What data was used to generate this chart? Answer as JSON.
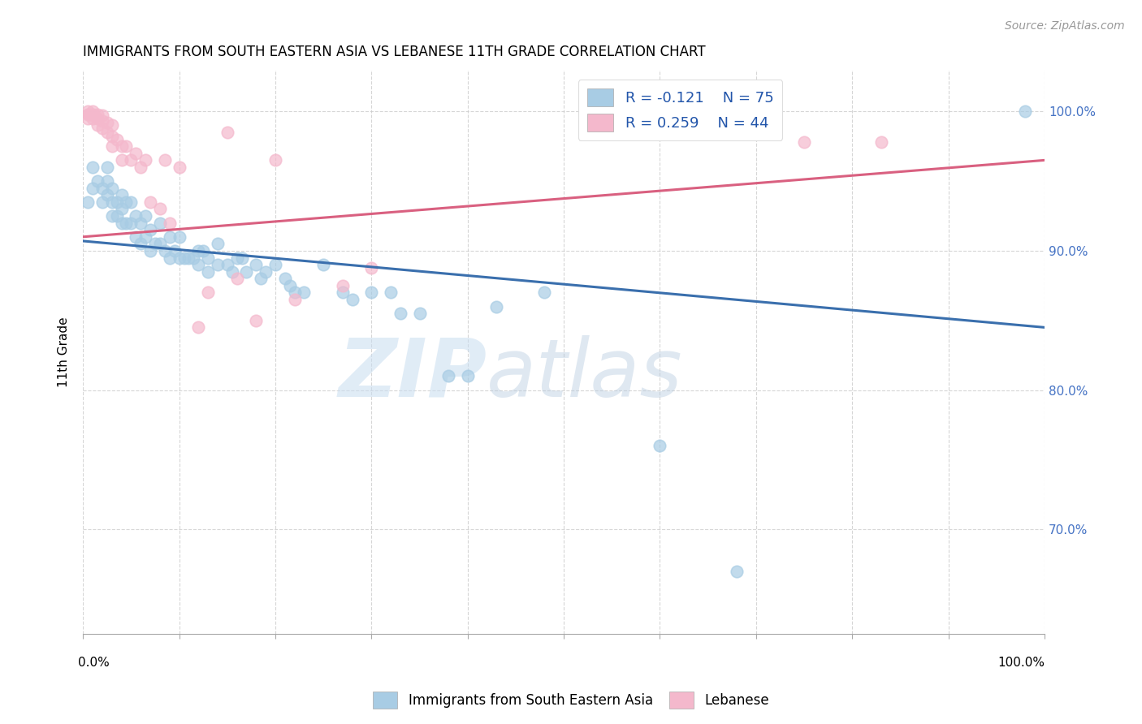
{
  "title": "IMMIGRANTS FROM SOUTH EASTERN ASIA VS LEBANESE 11TH GRADE CORRELATION CHART",
  "source": "Source: ZipAtlas.com",
  "ylabel": "11th Grade",
  "ytick_values": [
    0.7,
    0.8,
    0.9,
    1.0
  ],
  "xlim": [
    0.0,
    1.0
  ],
  "ylim": [
    0.625,
    1.03
  ],
  "legend_blue_R": "R = -0.121",
  "legend_blue_N": "N = 75",
  "legend_pink_R": "R = 0.259",
  "legend_pink_N": "N = 44",
  "blue_color": "#a8cce4",
  "pink_color": "#f4b8cc",
  "blue_line_color": "#3a6fad",
  "pink_line_color": "#d96080",
  "blue_line_start_y": 0.907,
  "blue_line_end_y": 0.845,
  "pink_line_start_y": 0.91,
  "pink_line_end_y": 0.965,
  "watermark_zip": "ZIP",
  "watermark_atlas": "atlas",
  "blue_scatter_x": [
    0.005,
    0.01,
    0.01,
    0.015,
    0.02,
    0.02,
    0.025,
    0.025,
    0.025,
    0.03,
    0.03,
    0.03,
    0.035,
    0.035,
    0.04,
    0.04,
    0.04,
    0.045,
    0.045,
    0.05,
    0.05,
    0.055,
    0.055,
    0.06,
    0.06,
    0.065,
    0.065,
    0.07,
    0.07,
    0.075,
    0.08,
    0.08,
    0.085,
    0.09,
    0.09,
    0.095,
    0.1,
    0.1,
    0.105,
    0.11,
    0.115,
    0.12,
    0.12,
    0.125,
    0.13,
    0.13,
    0.14,
    0.14,
    0.15,
    0.155,
    0.16,
    0.165,
    0.17,
    0.18,
    0.185,
    0.19,
    0.2,
    0.21,
    0.215,
    0.22,
    0.23,
    0.25,
    0.27,
    0.28,
    0.3,
    0.32,
    0.33,
    0.35,
    0.38,
    0.4,
    0.43,
    0.48,
    0.6,
    0.68,
    0.98
  ],
  "blue_scatter_y": [
    0.935,
    0.96,
    0.945,
    0.95,
    0.945,
    0.935,
    0.96,
    0.95,
    0.94,
    0.945,
    0.935,
    0.925,
    0.935,
    0.925,
    0.94,
    0.93,
    0.92,
    0.935,
    0.92,
    0.935,
    0.92,
    0.925,
    0.91,
    0.92,
    0.905,
    0.925,
    0.91,
    0.915,
    0.9,
    0.905,
    0.92,
    0.905,
    0.9,
    0.91,
    0.895,
    0.9,
    0.91,
    0.895,
    0.895,
    0.895,
    0.895,
    0.9,
    0.89,
    0.9,
    0.895,
    0.885,
    0.905,
    0.89,
    0.89,
    0.885,
    0.895,
    0.895,
    0.885,
    0.89,
    0.88,
    0.885,
    0.89,
    0.88,
    0.875,
    0.87,
    0.87,
    0.89,
    0.87,
    0.865,
    0.87,
    0.87,
    0.855,
    0.855,
    0.81,
    0.81,
    0.86,
    0.87,
    0.76,
    0.67,
    1.0
  ],
  "pink_scatter_x": [
    0.005,
    0.005,
    0.005,
    0.007,
    0.01,
    0.01,
    0.01,
    0.012,
    0.015,
    0.015,
    0.015,
    0.02,
    0.02,
    0.02,
    0.025,
    0.025,
    0.03,
    0.03,
    0.03,
    0.035,
    0.04,
    0.04,
    0.045,
    0.05,
    0.055,
    0.06,
    0.065,
    0.07,
    0.08,
    0.085,
    0.09,
    0.1,
    0.12,
    0.13,
    0.15,
    0.16,
    0.18,
    0.2,
    0.22,
    0.27,
    0.3,
    0.55,
    0.75,
    0.83
  ],
  "pink_scatter_y": [
    1.0,
    0.998,
    0.995,
    0.998,
    1.0,
    0.998,
    0.995,
    0.997,
    0.998,
    0.995,
    0.99,
    0.997,
    0.993,
    0.988,
    0.992,
    0.985,
    0.99,
    0.982,
    0.975,
    0.98,
    0.975,
    0.965,
    0.975,
    0.965,
    0.97,
    0.96,
    0.965,
    0.935,
    0.93,
    0.965,
    0.92,
    0.96,
    0.845,
    0.87,
    0.985,
    0.88,
    0.85,
    0.965,
    0.865,
    0.875,
    0.888,
    0.985,
    0.978,
    0.978
  ]
}
